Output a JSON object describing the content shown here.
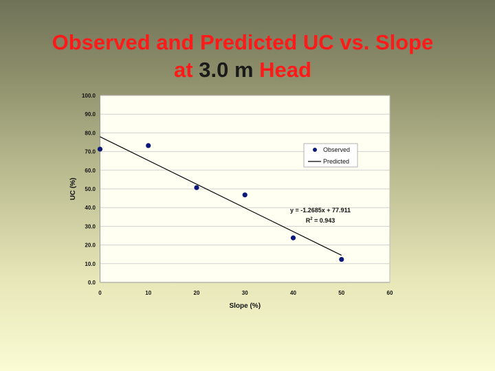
{
  "slide": {
    "title_line1": "Observed and Predicted UC vs. Slope",
    "title_line2_prefix": "at ",
    "title_line2_value": "3.0 m",
    "title_line2_suffix": " Head"
  },
  "colors": {
    "title": "#ff1a1a",
    "title_highlight": "#1a1a1a",
    "marker": "#0b1a7a",
    "line": "#000000",
    "plot_background": "#fffff2",
    "grid": "#cfcfcf"
  },
  "chart_data": {
    "type": "scatter",
    "title": "",
    "xlabel": "Slope (%)",
    "ylabel": "UC (%)",
    "xlim": [
      0,
      60
    ],
    "ylim": [
      0,
      100
    ],
    "xticks": [
      "0",
      "10",
      "20",
      "30",
      "40",
      "50",
      "60"
    ],
    "yticks": [
      "0.0",
      "10.0",
      "20.0",
      "30.0",
      "40.0",
      "50.0",
      "60.0",
      "70.0",
      "80.0",
      "90.0",
      "100.0"
    ],
    "grid": true,
    "legend": {
      "position": "right",
      "entries": [
        "Observed",
        "Predicted"
      ]
    },
    "series": [
      {
        "name": "Observed",
        "kind": "scatter",
        "x": [
          0,
          10,
          20,
          30,
          40,
          50
        ],
        "y": [
          71.3,
          73.2,
          50.7,
          46.8,
          23.8,
          12.3
        ]
      },
      {
        "name": "Predicted",
        "kind": "line",
        "slope": -1.2685,
        "intercept": 77.911,
        "x_range": [
          0,
          50
        ]
      }
    ],
    "annotations": {
      "equation": "y = -1.2685x + 77.911",
      "r2_prefix": "R",
      "r2_sup": "2",
      "r2_suffix": " = 0.943"
    }
  }
}
